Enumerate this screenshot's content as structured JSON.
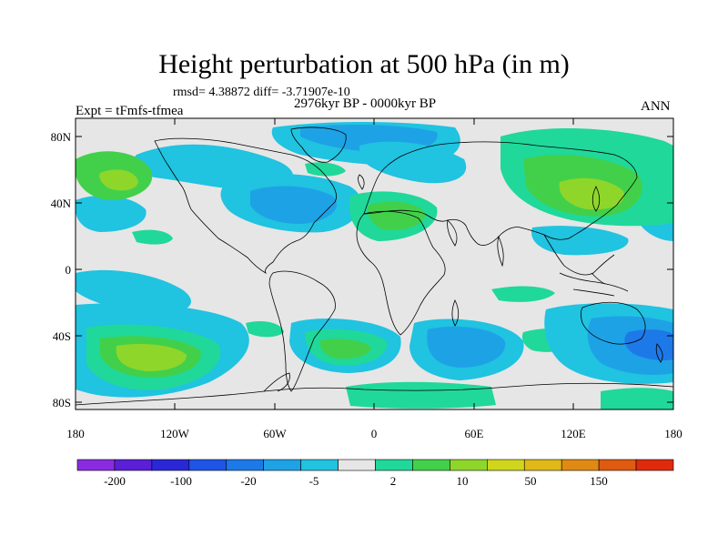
{
  "header": {
    "title": "Height perturbation at 500 hPa (in m)",
    "stats": "rmsd= 4.38872 diff= -3.71907e-10",
    "period": "2976kyr BP - 0000kyr BP",
    "experiment": "Expt = tFmfs-tfmea",
    "season": "ANN"
  },
  "axes": {
    "lat_labels": [
      "80N",
      "40N",
      "0",
      "40S",
      "80S"
    ],
    "lon_labels": [
      "180",
      "120W",
      "60W",
      "0",
      "60E",
      "120E",
      "180"
    ]
  },
  "colorbar": {
    "labels": [
      "-200",
      "-100",
      "-20",
      "-5",
      "2",
      "10",
      "50",
      "150"
    ],
    "colors": [
      "#8a2be2",
      "#5a1fd6",
      "#2a28d6",
      "#1f55e6",
      "#1d79e8",
      "#1ea2e6",
      "#20c3e0",
      "#e6e6e6",
      "#20d89a",
      "#42d04a",
      "#8fd62a",
      "#cfd61c",
      "#e0b818",
      "#e08a14",
      "#e05a10",
      "#e02a0c"
    ]
  },
  "palette": {
    "neutral": "#e6e6e6",
    "strong_blue": "#1d79e8",
    "blue": "#1ea2e6",
    "cyan": "#20c3e0",
    "teal": "#20d89a",
    "green": "#42d04a",
    "yellow_green": "#8fd62a",
    "olive": "#cfd61c"
  }
}
